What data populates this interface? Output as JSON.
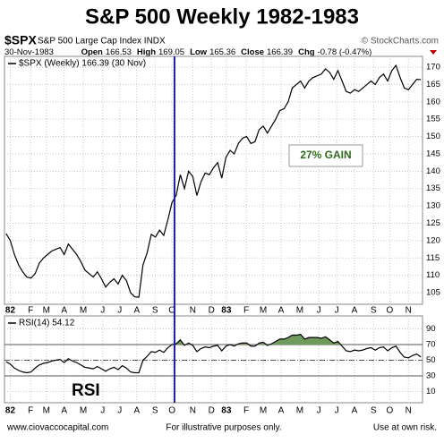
{
  "header": {
    "symbol": "$SPX",
    "name": "S&P 500 Large Cap Index INDX",
    "credit": "© StockCharts.com",
    "date": "30-Nov-1983",
    "fields": [
      {
        "label": "Open",
        "value": "166.53"
      },
      {
        "label": "High",
        "value": "169.05"
      },
      {
        "label": "Low",
        "value": "165.36"
      },
      {
        "label": "Close",
        "value": "166.39"
      },
      {
        "label": "Chg",
        "value": "-0.78 (-0.47%)"
      }
    ]
  },
  "footer": [
    "www.ciovaccocapital.com",
    "For illustrative purposes only.",
    "Use at own risk."
  ],
  "marker_line": {
    "x": 40.6,
    "color": "#1c1ca8"
  },
  "chart_data": [
    {
      "type": "line",
      "title": "S&P 500 Weekly 1982-1983",
      "annotation": "27% GAIN",
      "annotation_color": "#2e6b1e",
      "series": [
        {
          "name": "$SPX (Weekly) 166.39 (30 Nov)",
          "color": "#000000",
          "values": [
            122,
            120,
            116,
            113,
            111,
            109.5,
            109.2,
            110.5,
            113.5,
            115,
            116,
            117,
            117.5,
            118,
            116,
            119,
            117.5,
            116,
            114,
            111.5,
            110.5,
            109.5,
            111,
            109,
            106.6,
            108,
            109,
            107.5,
            110,
            108.5,
            105,
            103.8,
            103.7,
            113,
            116.5,
            121.8,
            121,
            123,
            121.5,
            126,
            131,
            133,
            139,
            135,
            140,
            138.5,
            133,
            137,
            139.5,
            139,
            141,
            142.5,
            138,
            144,
            146,
            145,
            148,
            149.5,
            150,
            148,
            148.5,
            152,
            153,
            151,
            153,
            155,
            157.5,
            158,
            160,
            164,
            165,
            166,
            164,
            166,
            167,
            167.5,
            168,
            169.5,
            168.5,
            166.5,
            169,
            166,
            163,
            162.5,
            163.5,
            163,
            164,
            165,
            166,
            165,
            167,
            168,
            166,
            169,
            170.5,
            167,
            164,
            163.5,
            165,
            166.5,
            166.4
          ]
        }
      ],
      "xlim": [
        -0.4,
        100.4
      ],
      "ylim": [
        101.65,
        173.1
      ],
      "yticks": [
        105,
        110,
        115,
        120,
        125,
        130,
        135,
        140,
        145,
        150,
        155,
        160,
        165,
        170
      ],
      "xticks": [
        {
          "value": 1,
          "label": "82"
        },
        {
          "value": 5.9,
          "label": "F"
        },
        {
          "value": 9.7,
          "label": "M"
        },
        {
          "value": 14,
          "label": "A"
        },
        {
          "value": 18.6,
          "label": "M"
        },
        {
          "value": 23.3,
          "label": "J"
        },
        {
          "value": 27.4,
          "label": "J"
        },
        {
          "value": 31.5,
          "label": "A"
        },
        {
          "value": 35.9,
          "label": "S"
        },
        {
          "value": 40,
          "label": "O"
        },
        {
          "value": 45,
          "label": "N"
        },
        {
          "value": 49.5,
          "label": "D"
        },
        {
          "value": 53.1,
          "label": "83"
        },
        {
          "value": 57.9,
          "label": "F"
        },
        {
          "value": 62,
          "label": "M"
        },
        {
          "value": 66.3,
          "label": "A"
        },
        {
          "value": 70.8,
          "label": "M"
        },
        {
          "value": 75.4,
          "label": "J"
        },
        {
          "value": 79.7,
          "label": "J"
        },
        {
          "value": 84,
          "label": "A"
        },
        {
          "value": 88.6,
          "label": "S"
        },
        {
          "value": 92.5,
          "label": "O"
        },
        {
          "value": 97,
          "label": "N"
        }
      ],
      "grid": true
    },
    {
      "type": "rsi",
      "annotation": "RSI",
      "overbought": 70,
      "midline": 50,
      "oversold": 30,
      "fill_color": "#6e9a5e",
      "series": [
        {
          "name": "RSI(14) 54.12",
          "color": "#000000",
          "values": [
            48,
            45,
            40,
            37,
            35,
            34,
            35,
            40,
            44,
            46,
            47,
            49,
            50,
            51,
            47,
            52,
            49,
            47,
            44,
            41,
            40,
            39,
            42,
            39,
            36,
            39,
            41,
            38,
            43,
            40,
            35,
            34,
            34,
            50,
            55,
            61,
            60,
            63,
            60,
            66,
            70,
            71,
            76,
            69,
            72,
            69,
            61,
            65,
            67,
            66,
            68,
            69,
            62,
            68,
            70,
            68,
            71,
            72,
            72,
            68,
            68,
            72,
            73,
            69,
            71,
            74,
            77,
            77,
            79,
            82,
            82,
            83,
            77,
            79,
            79,
            79,
            78,
            80,
            76,
            72,
            74,
            68,
            62,
            61,
            63,
            62,
            63,
            65,
            66,
            63,
            66,
            67,
            62,
            66,
            68,
            60,
            54,
            53,
            56,
            58,
            54.12
          ]
        }
      ],
      "xlim": [
        -0.4,
        100.4
      ],
      "ylim": [
        -4.3,
        106.6
      ],
      "yticks": [
        10,
        30,
        50,
        70,
        90
      ],
      "xticks": [
        {
          "value": 1,
          "label": "82"
        },
        {
          "value": 5.9,
          "label": "F"
        },
        {
          "value": 9.7,
          "label": "M"
        },
        {
          "value": 14,
          "label": "A"
        },
        {
          "value": 18.6,
          "label": "M"
        },
        {
          "value": 23.3,
          "label": "J"
        },
        {
          "value": 27.4,
          "label": "J"
        },
        {
          "value": 31.5,
          "label": "A"
        },
        {
          "value": 35.9,
          "label": "S"
        },
        {
          "value": 40,
          "label": "O"
        },
        {
          "value": 45,
          "label": "N"
        },
        {
          "value": 49.5,
          "label": "D"
        },
        {
          "value": 53.1,
          "label": "83"
        },
        {
          "value": 57.9,
          "label": "F"
        },
        {
          "value": 62,
          "label": "M"
        },
        {
          "value": 66.3,
          "label": "A"
        },
        {
          "value": 70.8,
          "label": "M"
        },
        {
          "value": 75.4,
          "label": "J"
        },
        {
          "value": 79.7,
          "label": "J"
        },
        {
          "value": 84,
          "label": "A"
        },
        {
          "value": 88.6,
          "label": "S"
        },
        {
          "value": 92.5,
          "label": "O"
        },
        {
          "value": 97,
          "label": "N"
        }
      ],
      "grid": true
    }
  ]
}
